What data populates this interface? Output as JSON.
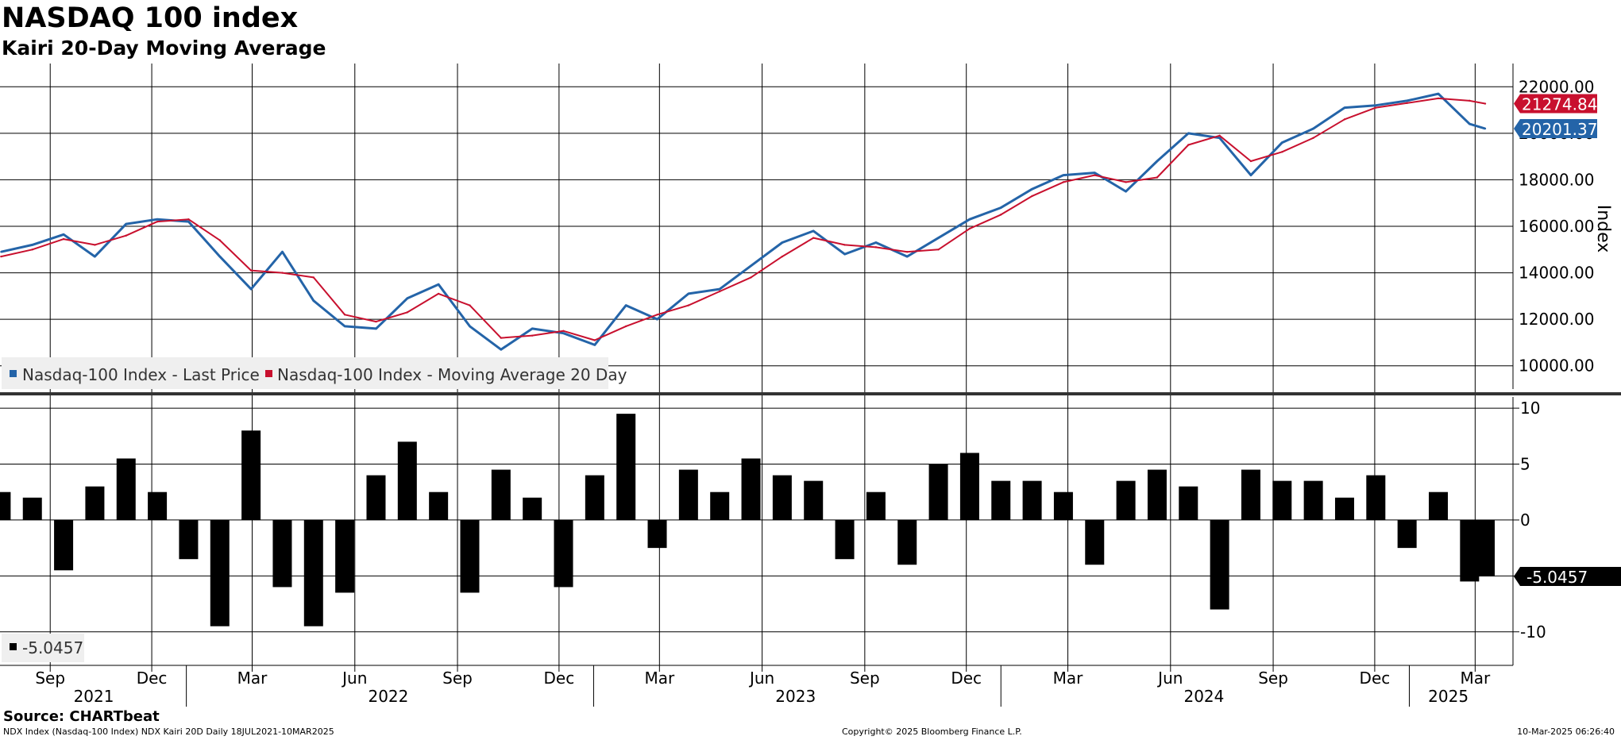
{
  "header": {
    "title": "NASDAQ 100 index",
    "subtitle": "Kairi 20-Day Moving Average"
  },
  "footer": {
    "source": "Source: CHARTbeat",
    "description": "NDX Index (Nasdaq-100 Index) NDX Kairi 20D  Daily 18JUL2021-10MAR2025",
    "copyright": "Copyright© 2025 Bloomberg Finance L.P.",
    "timestamp": "10-Mar-2025 06:26:40"
  },
  "colors": {
    "price": "#2464a8",
    "ma": "#c8102e",
    "kairi": "#000000",
    "grid": "#000000",
    "legend_bg": "#efefef"
  },
  "chart_data": [
    {
      "type": "line",
      "title": "",
      "ylabel": "Index",
      "ylim": [
        9000,
        23000
      ],
      "yticks": [
        "22000.00",
        "20000.00",
        "18000.00",
        "16000.00",
        "14000.00",
        "12000.00",
        "10000.00"
      ],
      "grid": true,
      "legend_position": "bottom-left",
      "x": [
        "2021-07-19",
        "2021-08-16",
        "2021-09-13",
        "2021-10-11",
        "2021-11-08",
        "2021-12-06",
        "2022-01-03",
        "2022-01-31",
        "2022-02-28",
        "2022-03-28",
        "2022-04-25",
        "2022-05-23",
        "2022-06-20",
        "2022-07-18",
        "2022-08-15",
        "2022-09-12",
        "2022-10-10",
        "2022-11-07",
        "2022-12-05",
        "2023-01-02",
        "2023-01-30",
        "2023-02-27",
        "2023-03-27",
        "2023-04-24",
        "2023-05-22",
        "2023-06-19",
        "2023-07-17",
        "2023-08-14",
        "2023-09-11",
        "2023-10-09",
        "2023-11-06",
        "2023-12-04",
        "2024-01-01",
        "2024-01-29",
        "2024-02-26",
        "2024-03-25",
        "2024-04-22",
        "2024-05-20",
        "2024-06-17",
        "2024-07-15",
        "2024-08-12",
        "2024-09-09",
        "2024-10-07",
        "2024-11-04",
        "2024-12-02",
        "2024-12-30",
        "2025-01-27",
        "2025-02-24",
        "2025-03-10"
      ],
      "series": [
        {
          "name": "Nasdaq-100 Index - Last Price",
          "values": [
            14900,
            15200,
            15650,
            14700,
            16100,
            16300,
            16200,
            14700,
            13300,
            14900,
            12800,
            11700,
            11600,
            12900,
            13500,
            11700,
            10700,
            11600,
            11400,
            10900,
            12600,
            12000,
            13100,
            13300,
            14300,
            15300,
            15800,
            14800,
            15300,
            14700,
            15500,
            16300,
            16800,
            17600,
            18200,
            18300,
            17500,
            18800,
            20000,
            19800,
            18200,
            19600,
            20200,
            21100,
            21200,
            21400,
            21700,
            20400,
            20201.37
          ]
        },
        {
          "name": "Nasdaq-100 Index - Moving Average 20 Day",
          "values": [
            14700,
            15000,
            15450,
            15200,
            15600,
            16200,
            16300,
            15400,
            14100,
            14000,
            13800,
            12200,
            11900,
            12300,
            13100,
            12600,
            11200,
            11300,
            11500,
            11100,
            11700,
            12200,
            12600,
            13200,
            13800,
            14700,
            15500,
            15200,
            15100,
            14900,
            15000,
            15900,
            16500,
            17300,
            17900,
            18200,
            17900,
            18100,
            19500,
            19900,
            18800,
            19200,
            19800,
            20600,
            21100,
            21300,
            21500,
            21400,
            21274.84
          ]
        }
      ],
      "last_values": [
        "21274.84",
        "20201.37"
      ]
    },
    {
      "type": "bar",
      "title": "",
      "ylim": [
        -13,
        11
      ],
      "yticks": [
        "10",
        "5",
        "0",
        "-5",
        "-10"
      ],
      "grid": true,
      "series": [
        {
          "name": "-5.0457",
          "x": [
            "2021-07-19",
            "2021-08-16",
            "2021-09-13",
            "2021-10-11",
            "2021-11-08",
            "2021-12-06",
            "2022-01-03",
            "2022-01-31",
            "2022-02-28",
            "2022-03-28",
            "2022-04-25",
            "2022-05-23",
            "2022-06-20",
            "2022-07-18",
            "2022-08-15",
            "2022-09-12",
            "2022-10-10",
            "2022-11-07",
            "2022-12-05",
            "2023-01-02",
            "2023-01-30",
            "2023-02-27",
            "2023-03-27",
            "2023-04-24",
            "2023-05-22",
            "2023-06-19",
            "2023-07-17",
            "2023-08-14",
            "2023-09-11",
            "2023-10-09",
            "2023-11-06",
            "2023-12-04",
            "2024-01-01",
            "2024-01-29",
            "2024-02-26",
            "2024-03-25",
            "2024-04-22",
            "2024-05-20",
            "2024-06-17",
            "2024-07-15",
            "2024-08-12",
            "2024-09-09",
            "2024-10-07",
            "2024-11-04",
            "2024-12-02",
            "2024-12-30",
            "2025-01-27",
            "2025-02-24",
            "2025-03-10"
          ],
          "values": [
            2.5,
            2.0,
            -4.5,
            3.0,
            5.5,
            2.5,
            -3.5,
            -9.5,
            8.0,
            -6.0,
            -9.5,
            -6.5,
            4.0,
            7.0,
            2.5,
            -6.5,
            4.5,
            2.0,
            -6.0,
            4.0,
            9.5,
            -2.5,
            4.5,
            2.5,
            5.5,
            4.0,
            3.5,
            -3.5,
            2.5,
            -4.0,
            5.0,
            6.0,
            3.5,
            3.5,
            2.5,
            -4.0,
            3.5,
            4.5,
            3.0,
            -8.0,
            4.5,
            3.5,
            3.5,
            2.0,
            4.0,
            -2.5,
            2.5,
            -5.5,
            -5.0457
          ]
        }
      ],
      "last_value": "-5.0457"
    }
  ],
  "x_axis": {
    "months": [
      "Sep",
      "Dec",
      "Mar",
      "Jun",
      "Sep",
      "Dec",
      "Mar",
      "Jun",
      "Sep",
      "Dec",
      "Mar",
      "Jun",
      "Sep",
      "Dec",
      "Mar"
    ],
    "years": [
      "2021",
      "2022",
      "2023",
      "2024",
      "2025"
    ]
  }
}
